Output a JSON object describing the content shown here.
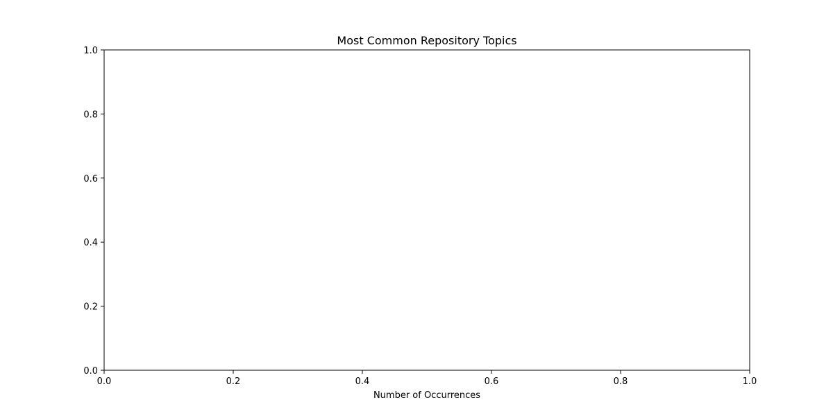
{
  "chart_data": {
    "type": "bar",
    "title": "Most Common Repository Topics",
    "xlabel": "Number of Occurrences",
    "ylabel": "",
    "categories": [],
    "values": [],
    "xlim": [
      0.0,
      1.0
    ],
    "ylim": [
      0.0,
      1.0
    ],
    "xticks": [
      "0.0",
      "0.2",
      "0.4",
      "0.6",
      "0.8",
      "1.0"
    ],
    "yticks": [
      "0.0",
      "0.2",
      "0.4",
      "0.6",
      "0.8",
      "1.0"
    ],
    "grid": false,
    "legend": "none"
  },
  "colors": {
    "axis": "#000000",
    "background": "#ffffff"
  }
}
